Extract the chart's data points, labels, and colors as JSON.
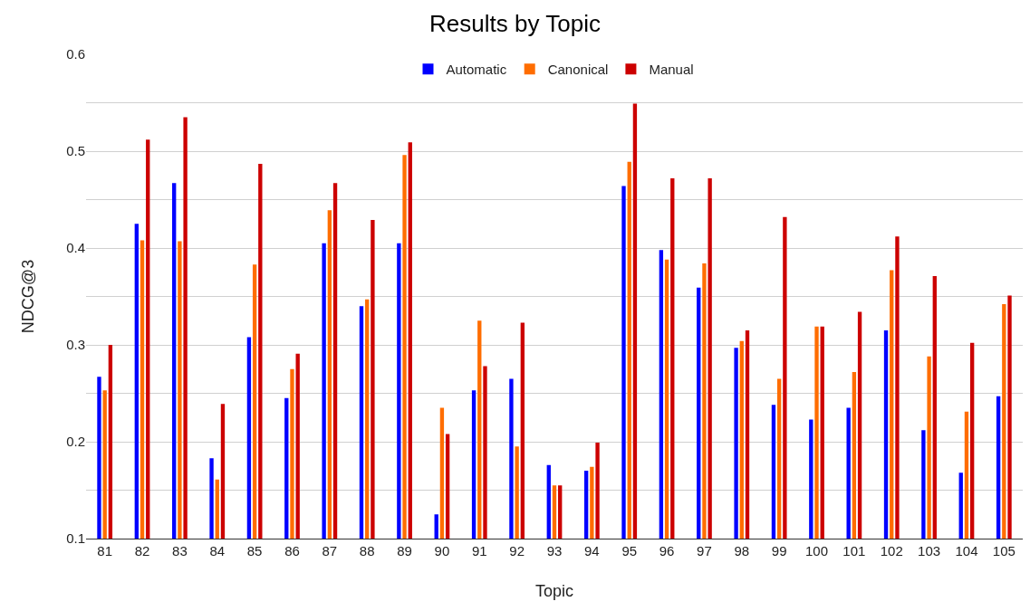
{
  "chart_data": {
    "type": "bar",
    "title": "Results by Topic",
    "xlabel": "Topic",
    "ylabel": "NDCG@3",
    "categories": [
      "81",
      "82",
      "83",
      "84",
      "85",
      "86",
      "87",
      "88",
      "89",
      "90",
      "91",
      "92",
      "93",
      "94",
      "95",
      "96",
      "97",
      "98",
      "99",
      "100",
      "101",
      "102",
      "103",
      "104",
      "105"
    ],
    "series": [
      {
        "name": "Automatic",
        "color": "#0000ff",
        "values": [
          0.267,
          0.425,
          0.467,
          0.183,
          0.308,
          0.245,
          0.405,
          0.34,
          0.405,
          0.125,
          0.253,
          0.265,
          0.176,
          0.17,
          0.464,
          0.398,
          0.359,
          0.297,
          0.238,
          0.223,
          0.235,
          0.315,
          0.212,
          0.168,
          0.247
        ]
      },
      {
        "name": "Canonical",
        "color": "#ff6d00",
        "values": [
          0.253,
          0.408,
          0.407,
          0.161,
          0.383,
          0.275,
          0.439,
          0.347,
          0.496,
          0.235,
          0.325,
          0.195,
          0.155,
          0.174,
          0.489,
          0.388,
          0.384,
          0.304,
          0.265,
          0.319,
          0.272,
          0.377,
          0.288,
          0.231,
          0.342
        ]
      },
      {
        "name": "Manual",
        "color": "#cc0000",
        "values": [
          0.3,
          0.512,
          0.535,
          0.239,
          0.487,
          0.291,
          0.467,
          0.429,
          0.509,
          0.208,
          0.278,
          0.323,
          0.155,
          0.199,
          0.549,
          0.472,
          0.472,
          0.315,
          0.432,
          0.319,
          0.334,
          0.412,
          0.371,
          0.302,
          0.351
        ]
      }
    ],
    "ylim": [
      0.1,
      0.6
    ],
    "yticks": [
      0.1,
      {
        "value": 0.15,
        "label": null
      },
      0.2,
      {
        "value": 0.25,
        "label": null
      },
      0.3,
      {
        "value": 0.35,
        "label": null
      },
      0.4,
      {
        "value": 0.45,
        "label": null
      },
      0.5,
      {
        "value": 0.55,
        "label": null
      },
      0.6
    ],
    "grid": "y",
    "legend": "top"
  }
}
